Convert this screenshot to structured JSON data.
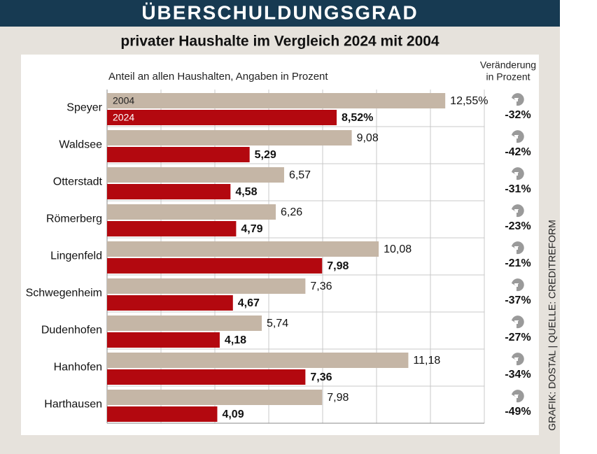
{
  "chart_data": {
    "type": "bar",
    "orientation": "horizontal",
    "title": "ÜBERSCHULDUNGSGRAD",
    "subtitle": "privater Haushalte im Vergleich 2024 mit 2004",
    "axis_label": "Anteil an allen Haushalten, Angaben in Prozent",
    "categories": [
      "Speyer",
      "Waldsee",
      "Otterstadt",
      "Römerberg",
      "Lingenfeld",
      "Schwegenheim",
      "Dudenhofen",
      "Hanhofen",
      "Harthausen"
    ],
    "series": [
      {
        "name": "2004",
        "color": "#c5b6a6",
        "values": [
          12.55,
          9.08,
          6.57,
          6.26,
          10.08,
          7.36,
          5.74,
          11.18,
          7.98
        ],
        "value_labels": [
          "12,55%",
          "9,08",
          "6,57",
          "6,26",
          "10,08",
          "7,36",
          "5,74",
          "11,18",
          "7,98"
        ]
      },
      {
        "name": "2024",
        "color": "#b3080f",
        "values": [
          8.52,
          5.29,
          4.58,
          4.79,
          7.98,
          4.67,
          4.18,
          7.36,
          4.09
        ],
        "value_labels": [
          "8,52%",
          "5,29",
          "4,58",
          "4,79",
          "7,98",
          "4,67",
          "4,18",
          "7,36",
          "4,09"
        ]
      }
    ],
    "change_header": [
      "Veränderung",
      "in Prozent"
    ],
    "change": {
      "values": [
        -32,
        -42,
        -31,
        -23,
        -21,
        -37,
        -27,
        -34,
        -49
      ],
      "value_labels": [
        "-32%",
        "-42%",
        "-31%",
        "-23%",
        "-21%",
        "-37%",
        "-27%",
        "-34%",
        "-49%"
      ]
    },
    "xlim": [
      0,
      14
    ],
    "xticks": [
      0,
      2,
      4,
      6,
      8,
      10,
      12,
      14
    ],
    "grid": true,
    "source": "GRAFIK: DOSTAL | QUELLE: CREDITREFORM"
  }
}
